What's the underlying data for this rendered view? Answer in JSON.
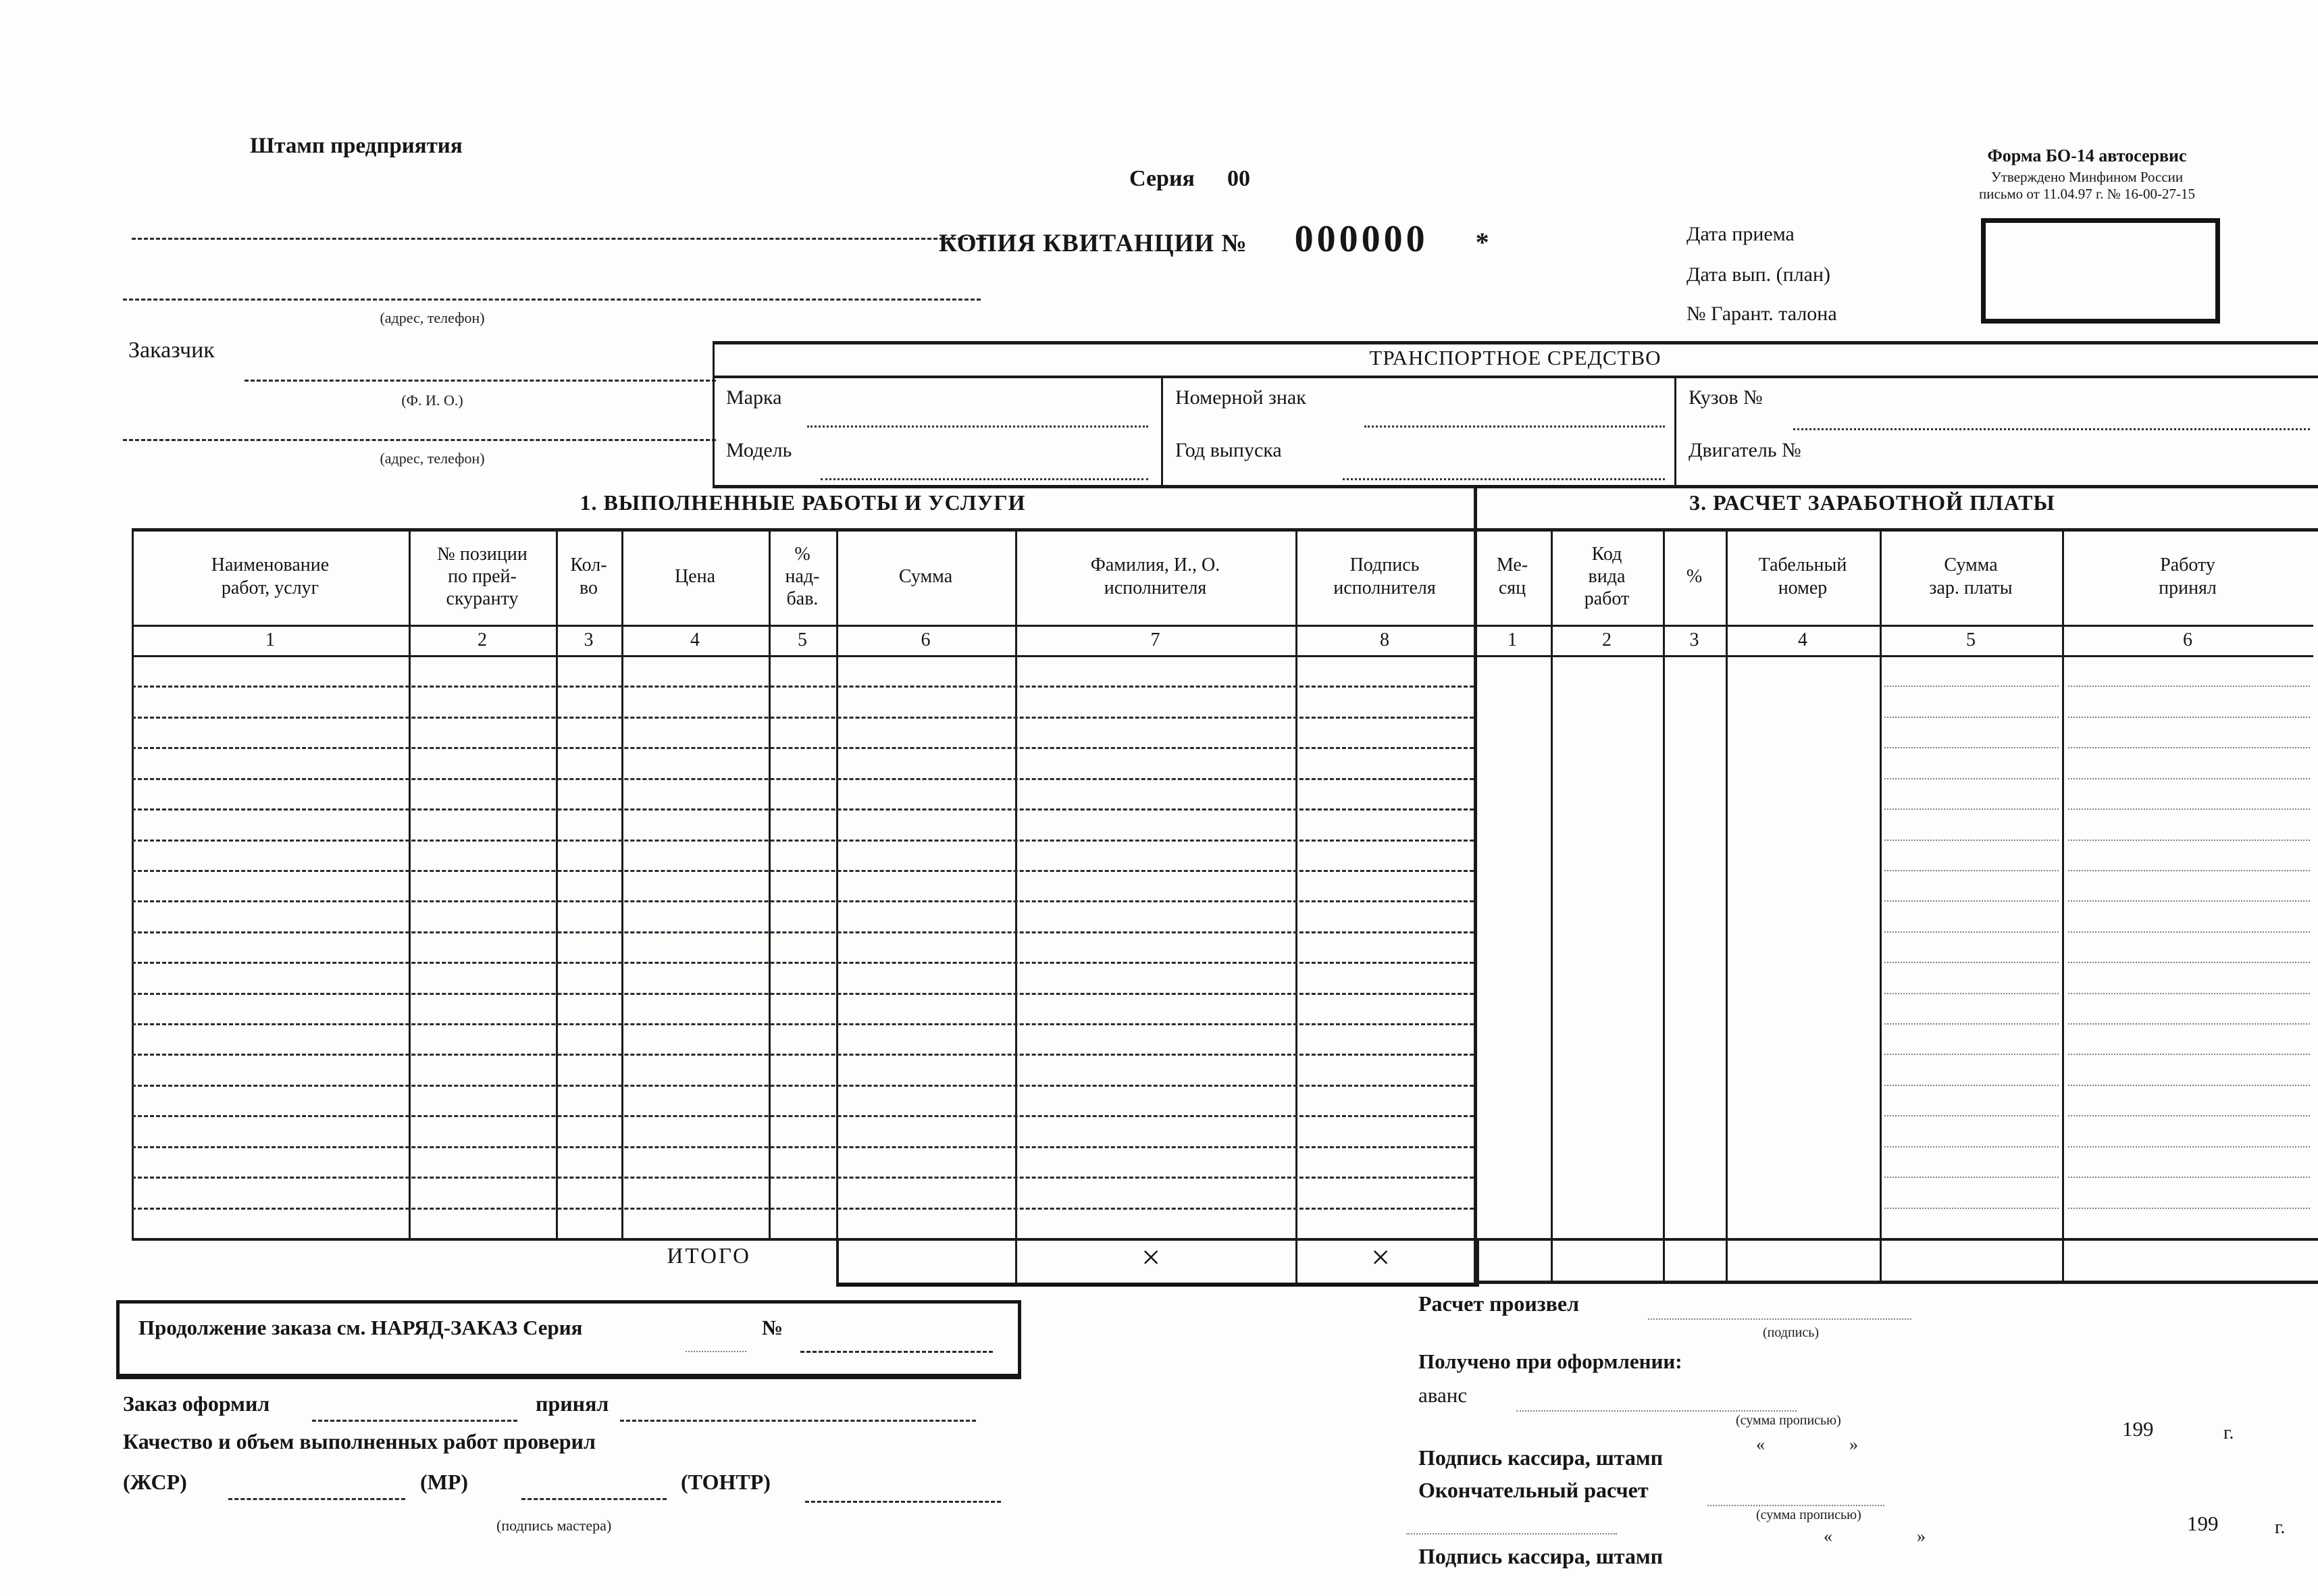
{
  "form": {
    "stamp": "Штамп предприятия",
    "series_label": "Серия",
    "series_value": "00",
    "title": "КОПИЯ КВИТАНЦИИ №",
    "number": "000000",
    "asterisk": "*",
    "approval": {
      "line1": "Форма БО-14 автосервис",
      "line2": "Утверждено Минфином России",
      "line3": "письмо от 11.04.97 г. № 16-00-27-15"
    },
    "dates": {
      "received": "Дата приема",
      "planned": "Дата вып. (план)",
      "warranty": "№ Гарант. талона"
    },
    "customer": {
      "address_hint_top": "(адрес, телефон)",
      "label": "Заказчик",
      "name_hint": "(Ф. И. О.)",
      "address_hint_bottom": "(адрес, телефон)"
    }
  },
  "vehicle": {
    "title": "ТРАНСПОРТНОЕ СРЕДСТВО",
    "make_label": "Марка",
    "plate_label": "Номерной знак",
    "body_label": "Кузов №",
    "model_label": "Модель",
    "year_label": "Год выпуска",
    "engine_label": "Двигатель №"
  },
  "sections": {
    "works_title": "1. ВЫПОЛНЕННЫЕ РАБОТЫ И УСЛУГИ",
    "salary_title": "3. РАСЧЕТ ЗАРАБОТНОЙ ПЛАТЫ"
  },
  "table": {
    "columns": [
      {
        "label": "Наименование\nработ, услуг",
        "num": "1"
      },
      {
        "label": "№ позиции\nпо прей-\nскуранту",
        "num": "2"
      },
      {
        "label": "Кол-\nво",
        "num": "3"
      },
      {
        "label": "Цена",
        "num": "4"
      },
      {
        "label": "%\nнад-\nбав.",
        "num": "5"
      },
      {
        "label": "Сумма",
        "num": "6"
      },
      {
        "label": "Фамилия, И., О.\nисполнителя",
        "num": "7"
      },
      {
        "label": "Подпись\nисполнителя",
        "num": "8"
      },
      {
        "label": "Ме-\nсяц",
        "num": "1"
      },
      {
        "label": "Код\nвида\nработ",
        "num": "2"
      },
      {
        "label": "%",
        "num": "3"
      },
      {
        "label": "Табельный\nномер",
        "num": "4"
      },
      {
        "label": "Сумма\nзар. платы",
        "num": "5"
      },
      {
        "label": "Работу\nпринял",
        "num": "6"
      }
    ],
    "empty_row_count": 18,
    "total_label": "ИТОГО",
    "x_mark": "×"
  },
  "footer_left": {
    "continuation": "Продолжение заказа см. НАРЯД-ЗАКАЗ Серия",
    "continuation_no": "№",
    "order_processed": "Заказ оформил",
    "order_accepted": "принял",
    "quality_check": "Качество и объем выполненных работ проверил",
    "zhsr": "(ЖСР)",
    "mr": "(МР)",
    "tontr": "(ТОНТР)",
    "master_sign_hint": "(подпись мастера)"
  },
  "footer_right": {
    "calculated_by": "Расчет произвел",
    "sign_hint": "(подпись)",
    "received_on_reg": "Получено при оформлении:",
    "advance": "аванс",
    "amount_words_hint": "(сумма прописью)",
    "open_quote": "«",
    "close_quote": "»",
    "year_prefix": "199",
    "year_suffix": "г.",
    "cashier_sign_stamp": "Подпись кассира, штамп",
    "final_payment": "Окончательный расчет",
    "amount_words_hint2": "(сумма прописью)",
    "cashier_sign_stamp2": "Подпись кассира, штамп"
  }
}
